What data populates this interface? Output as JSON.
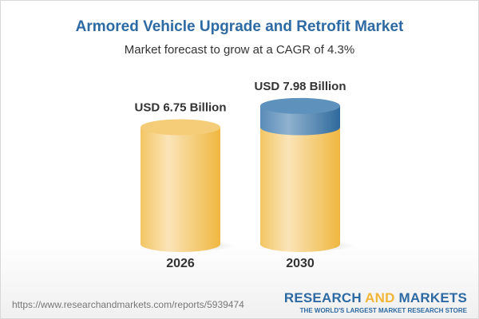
{
  "title": "Armored Vehicle Upgrade and Retrofit Market",
  "subtitle": "Market forecast to grow at a CAGR of 4.3%",
  "chart_data": {
    "type": "bar",
    "style": "3d-cylinder",
    "categories": [
      "2026",
      "2030"
    ],
    "values": [
      6.75,
      7.98
    ],
    "data_labels": [
      "USD 6.75 Billion",
      "USD 7.98 Billion"
    ],
    "unit": "USD Billion",
    "cagr": "4.3%",
    "colors": {
      "bar": "#f2c35c",
      "bar_highlight": "#fae3b5",
      "growth": "#4f86b5"
    }
  },
  "footer": {
    "url": "https://www.researchandmarkets.com/reports/5939474",
    "logo_part1": "RESEARCH ",
    "logo_part2": "AND",
    "logo_part3": " MARKETS",
    "logo_tagline": "THE WORLD'S LARGEST MARKET RESEARCH STORE"
  }
}
